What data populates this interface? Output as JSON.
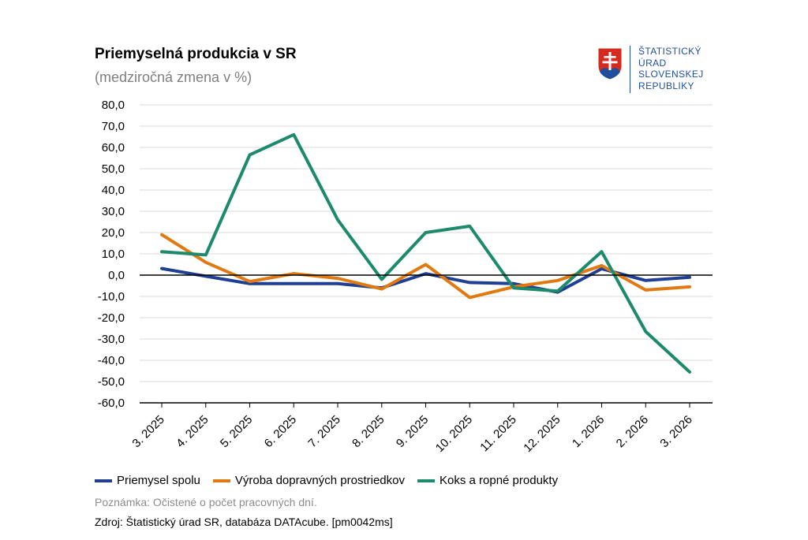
{
  "header": {
    "title": "Priemyselná produkcia v SR",
    "subtitle": "(medziročná zmena v %)"
  },
  "logo": {
    "lines": [
      "ŠTATISTICKÝ",
      "ÚRAD",
      "SLOVENSKEJ",
      "REPUBLIKY"
    ],
    "color": "#1f4e9e"
  },
  "footer": {
    "note": "Poznámka: Očistené o počet pracovných dní.",
    "source": "Zdroj: Štatistický úrad SR, databáza DATAcube. [pm0042ms]"
  },
  "chart_data": {
    "type": "line",
    "title": "Priemyselná produkcia v SR",
    "subtitle": "(medziročná zmena v %)",
    "categories": [
      "3. 2025",
      "4. 2025",
      "5. 2025",
      "6. 2025",
      "7. 2025",
      "8. 2025",
      "9. 2025",
      "10. 2025",
      "11. 2025",
      "12. 2025",
      "1. 2026",
      "2. 2026",
      "3. 2026"
    ],
    "yticks": [
      "80,0",
      "70,0",
      "60,0",
      "50,0",
      "40,0",
      "30,0",
      "20,0",
      "10,0",
      "0,0",
      "-10,0",
      "-20,0",
      "-30,0",
      "-40,0",
      "-50,0",
      "-60,0"
    ],
    "ylim": [
      -60,
      80
    ],
    "grid": true,
    "legend_position": "bottom",
    "series": [
      {
        "name": "Priemysel spolu",
        "color": "#1f3f95",
        "values": [
          3.1,
          -0.5,
          -4.0,
          -4.0,
          -4.0,
          -6.0,
          0.7,
          -3.5,
          -4.0,
          -8.0,
          3.0,
          -2.5,
          -1.0
        ]
      },
      {
        "name": "Výroba dopravných prostriedkov",
        "color": "#e07a10",
        "values": [
          19.0,
          6.0,
          -3.0,
          0.7,
          -1.5,
          -6.5,
          5.0,
          -10.5,
          -5.5,
          -2.5,
          4.5,
          -7.0,
          -5.5
        ]
      },
      {
        "name": "Koks a ropné produkty",
        "color": "#1c8a6b",
        "values": [
          11.0,
          9.5,
          56.5,
          66.0,
          26.0,
          -2.0,
          20.0,
          23.0,
          -6.0,
          -7.5,
          11.0,
          -26.5,
          -45.5
        ]
      }
    ]
  }
}
